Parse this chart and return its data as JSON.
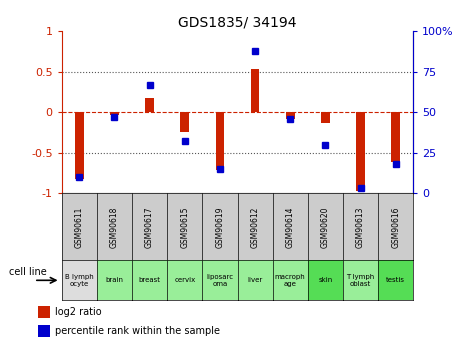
{
  "title": "GDS1835/ 34194",
  "samples": [
    "GSM90611",
    "GSM90618",
    "GSM90617",
    "GSM90615",
    "GSM90619",
    "GSM90612",
    "GSM90614",
    "GSM90620",
    "GSM90613",
    "GSM90616"
  ],
  "cell_lines": [
    "B lymph\nocyte",
    "brain",
    "breast",
    "cervix",
    "liposarc\noma",
    "liver",
    "macroph\nage",
    "skin",
    "T lymph\noblast",
    "testis"
  ],
  "cell_bg": [
    "#dddddd",
    "#99ee99",
    "#99ee99",
    "#99ee99",
    "#99ee99",
    "#99ee99",
    "#99ee99",
    "#55dd55",
    "#99ee99",
    "#55dd55"
  ],
  "sample_bg": "#cccccc",
  "log2_ratio": [
    -0.82,
    -0.04,
    0.18,
    -0.25,
    -0.72,
    0.53,
    -0.08,
    -0.13,
    -0.97,
    -0.62
  ],
  "pct_rank": [
    10,
    47,
    67,
    32,
    15,
    88,
    46,
    30,
    3,
    18
  ],
  "bar_color": "#cc2200",
  "dot_color": "#0000cc",
  "ylim_left": [
    -1,
    1
  ],
  "ylim_right": [
    0,
    100
  ],
  "yticks_left": [
    -1,
    -0.5,
    0,
    0.5,
    1
  ],
  "yticks_right": [
    0,
    25,
    50,
    75,
    100
  ],
  "ytick_labels_right": [
    "0",
    "25",
    "50",
    "75",
    "100%"
  ],
  "dotted_lines": [
    -0.5,
    0.5
  ],
  "bar_width": 0.25,
  "legend_label_red": "log2 ratio",
  "legend_label_blue": "percentile rank within the sample"
}
